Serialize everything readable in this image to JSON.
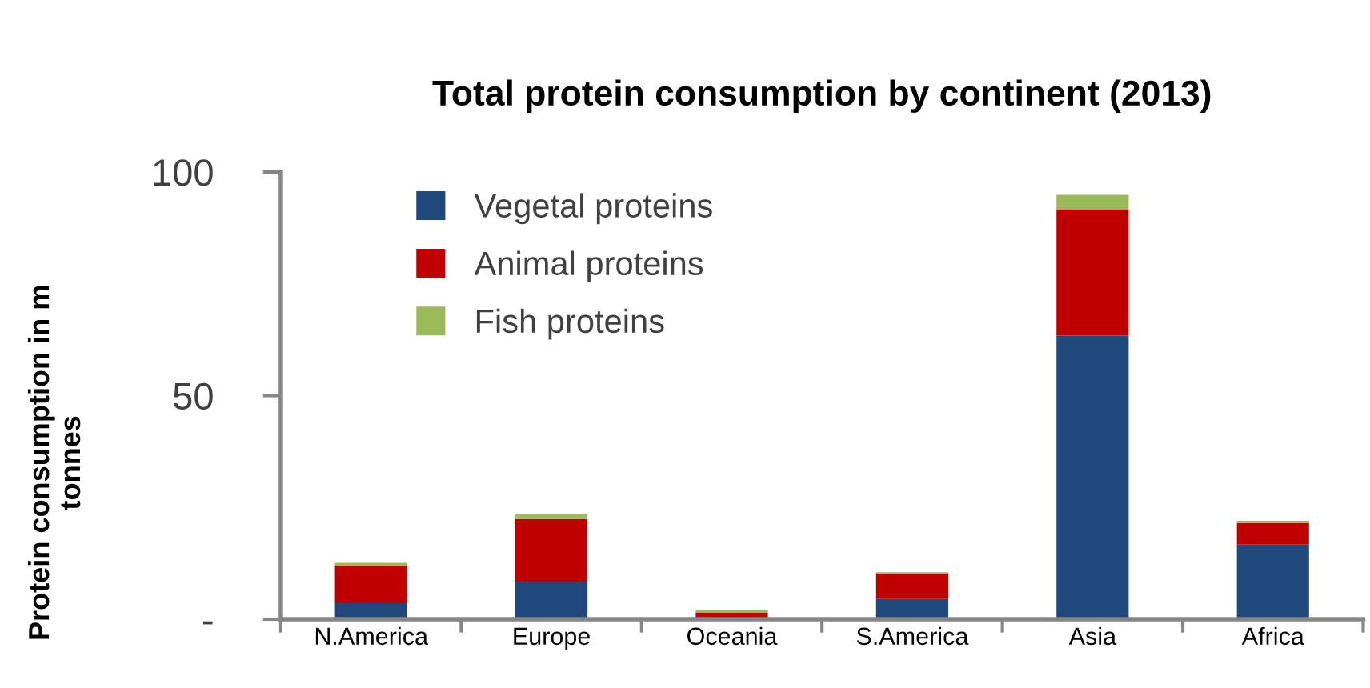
{
  "chart_data": {
    "type": "bar",
    "stacked": true,
    "title": "Total protein consumption by continent (2013)",
    "ylabel": "Protein consumption in m tonnes",
    "categories": [
      "N.America",
      "Europe",
      "Oceania",
      "S.America",
      "Asia",
      "Africa"
    ],
    "series": [
      {
        "name": "Vegetal proteins",
        "color": "#1f497d",
        "values": [
          3.6,
          8.3,
          null,
          4.5,
          63.4,
          16.7
        ]
      },
      {
        "name": "Animal proteins",
        "color": "#c00000",
        "values": [
          8.4,
          14.1,
          1.5,
          5.8,
          28.3,
          4.8
        ]
      },
      {
        "name": "Fish proteins",
        "color": "#9bbb59",
        "values": [
          0.6,
          1.1,
          0.6,
          0.2,
          3.2,
          0.5
        ]
      }
    ],
    "ylim": [
      0,
      100
    ],
    "yticks": [
      {
        "value": 0,
        "label": "-"
      },
      50,
      100
    ],
    "grid": false,
    "legend": "top left"
  }
}
